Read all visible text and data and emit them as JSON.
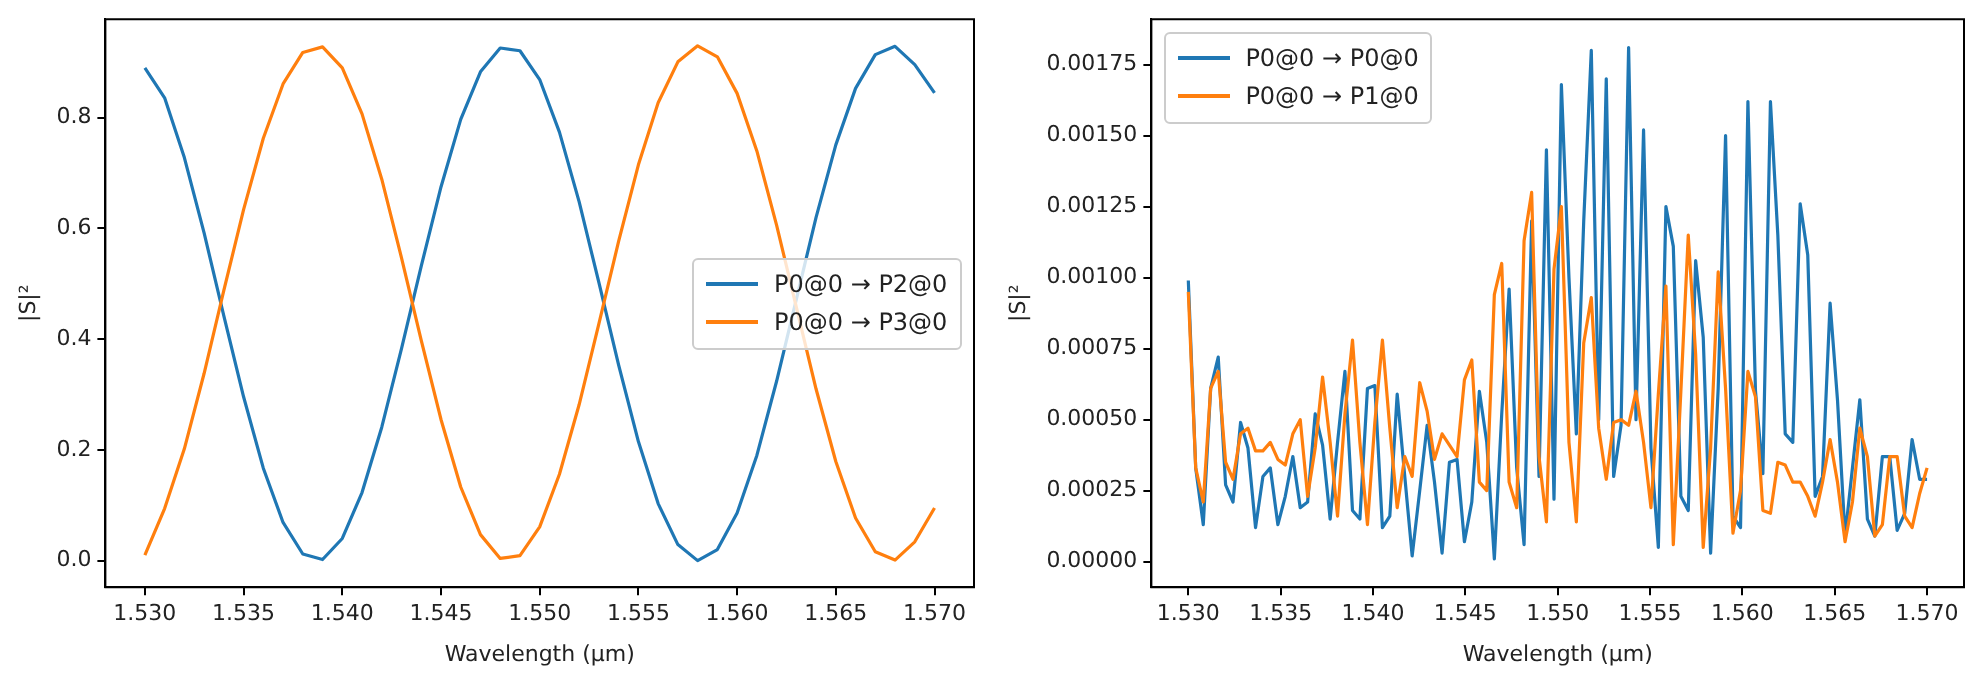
{
  "chart_data": [
    {
      "type": "line",
      "xlabel": "Wavelength (µm)",
      "ylabel": "|S|²",
      "legend": "center right",
      "grid": false,
      "marker": "none",
      "line_style": "solid",
      "xlim": [
        1.528,
        1.572
      ],
      "ylim": [
        -0.048,
        0.978
      ],
      "xticks": [
        {
          "value": 1.53,
          "label": "1.530"
        },
        {
          "value": 1.535,
          "label": "1.535"
        },
        {
          "value": 1.54,
          "label": "1.540"
        },
        {
          "value": 1.545,
          "label": "1.545"
        },
        {
          "value": 1.55,
          "label": "1.550"
        },
        {
          "value": 1.555,
          "label": "1.555"
        },
        {
          "value": 1.56,
          "label": "1.560"
        },
        {
          "value": 1.565,
          "label": "1.565"
        },
        {
          "value": 1.57,
          "label": "1.570"
        }
      ],
      "yticks": [
        {
          "value": 0,
          "label": "0.0"
        },
        {
          "value": 0.2,
          "label": "0.2"
        },
        {
          "value": 0.4,
          "label": "0.4"
        },
        {
          "value": 0.6,
          "label": "0.6"
        },
        {
          "value": 0.8,
          "label": "0.8"
        }
      ],
      "x": [
        1.53,
        1.531,
        1.532,
        1.533,
        1.534,
        1.535,
        1.536,
        1.537,
        1.538,
        1.539,
        1.54,
        1.541,
        1.542,
        1.543,
        1.544,
        1.545,
        1.546,
        1.547,
        1.548,
        1.549,
        1.55,
        1.551,
        1.552,
        1.553,
        1.554,
        1.555,
        1.556,
        1.557,
        1.558,
        1.559,
        1.56,
        1.561,
        1.562,
        1.564,
        1.565,
        1.566,
        1.567,
        1.568,
        1.569,
        1.57
      ],
      "series": [
        {
          "name": "P0@0 → P2@0",
          "color": "#1f77b4",
          "values": [
            0.89,
            0.836,
            0.728,
            0.592,
            0.442,
            0.296,
            0.167,
            0.069,
            0.012,
            0.002,
            0.04,
            0.123,
            0.241,
            0.383,
            0.532,
            0.675,
            0.797,
            0.883,
            0.926,
            0.921,
            0.869,
            0.774,
            0.648,
            0.502,
            0.353,
            0.215,
            0.103,
            0.029,
            0,
            0.02,
            0.086,
            0.19,
            0.324,
            0.62,
            0.751,
            0.853,
            0.914,
            0.929,
            0.896,
            0.845
          ]
        },
        {
          "name": "P0@0 → P3@0",
          "color": "#ff7f0e",
          "values": [
            0.01,
            0.094,
            0.202,
            0.338,
            0.488,
            0.634,
            0.763,
            0.861,
            0.918,
            0.928,
            0.89,
            0.807,
            0.689,
            0.547,
            0.398,
            0.255,
            0.133,
            0.047,
            0.004,
            0.009,
            0.061,
            0.156,
            0.282,
            0.428,
            0.577,
            0.715,
            0.827,
            0.901,
            0.93,
            0.91,
            0.844,
            0.74,
            0.606,
            0.31,
            0.179,
            0.077,
            0.016,
            0.001,
            0.034,
            0.095
          ]
        }
      ]
    },
    {
      "type": "line",
      "xlabel": "Wavelength (µm)",
      "ylabel": "|S|²",
      "legend": "top left",
      "grid": false,
      "marker": "none",
      "line_style": "solid",
      "xlim": [
        1.528,
        1.572
      ],
      "ylim": [
        -9e-05,
        0.00191
      ],
      "xticks": [
        {
          "value": 1.53,
          "label": "1.530"
        },
        {
          "value": 1.535,
          "label": "1.535"
        },
        {
          "value": 1.54,
          "label": "1.540"
        },
        {
          "value": 1.545,
          "label": "1.545"
        },
        {
          "value": 1.55,
          "label": "1.550"
        },
        {
          "value": 1.555,
          "label": "1.555"
        },
        {
          "value": 1.56,
          "label": "1.560"
        },
        {
          "value": 1.565,
          "label": "1.565"
        },
        {
          "value": 1.57,
          "label": "1.570"
        }
      ],
      "yticks": [
        {
          "value": 0,
          "label": "0.00000"
        },
        {
          "value": 0.00025,
          "label": "0.00025"
        },
        {
          "value": 0.0005,
          "label": "0.00050"
        },
        {
          "value": 0.00075,
          "label": "0.00075"
        },
        {
          "value": 0.001,
          "label": "0.00100"
        },
        {
          "value": 0.00125,
          "label": "0.00125"
        },
        {
          "value": 0.0015,
          "label": "0.00150"
        },
        {
          "value": 0.00175,
          "label": "0.00175"
        }
      ],
      "x": [
        1.53,
        1.5304,
        1.53081,
        1.53121,
        1.53162,
        1.53202,
        1.53242,
        1.53283,
        1.53323,
        1.53364,
        1.53404,
        1.53444,
        1.53485,
        1.53525,
        1.53566,
        1.53606,
        1.53646,
        1.53687,
        1.53727,
        1.53768,
        1.53808,
        1.53848,
        1.53889,
        1.53929,
        1.5397,
        1.5401,
        1.54051,
        1.54091,
        1.54131,
        1.54172,
        1.54212,
        1.54253,
        1.54293,
        1.54333,
        1.54374,
        1.54414,
        1.54455,
        1.54495,
        1.54535,
        1.54576,
        1.54616,
        1.54657,
        1.54697,
        1.54737,
        1.54778,
        1.54818,
        1.54859,
        1.54899,
        1.54939,
        1.5498,
        1.5502,
        1.55061,
        1.55101,
        1.55141,
        1.55182,
        1.55222,
        1.55263,
        1.55303,
        1.55343,
        1.55384,
        1.55424,
        1.55465,
        1.55505,
        1.55545,
        1.55586,
        1.55626,
        1.55667,
        1.55707,
        1.55747,
        1.55788,
        1.55828,
        1.55869,
        1.55909,
        1.55949,
        1.5599,
        1.5603,
        1.56071,
        1.56111,
        1.56152,
        1.56192,
        1.56232,
        1.56273,
        1.56313,
        1.56354,
        1.56394,
        1.56434,
        1.56475,
        1.56515,
        1.56556,
        1.56596,
        1.56636,
        1.56677,
        1.56717,
        1.56758,
        1.56798,
        1.56838,
        1.56879,
        1.56919,
        1.5696,
        1.57
      ],
      "series": [
        {
          "name": "P0@0 → P0@0",
          "color": "#1f77b4",
          "values": [
            0.00099,
            0.00033,
            0.00013,
            0.00061,
            0.00072,
            0.00027,
            0.00021,
            0.00049,
            0.0004,
            0.00012,
            0.0003,
            0.00033,
            0.00013,
            0.00023,
            0.00037,
            0.00019,
            0.00021,
            0.00052,
            0.00041,
            0.00015,
            0.00042,
            0.00067,
            0.00018,
            0.00015,
            0.00061,
            0.00062,
            0.00012,
            0.00016,
            0.00059,
            0.0003,
            2e-05,
            0.00025,
            0.00048,
            0.00028,
            3e-05,
            0.00035,
            0.00036,
            7e-05,
            0.00021,
            0.0006,
            0.00042,
            1e-05,
            0.00052,
            0.00096,
            0.00033,
            6e-05,
            0.0012,
            0.0003,
            0.00145,
            0.00022,
            0.00168,
            0.001,
            0.00045,
            0.0012,
            0.0018,
            0.0005,
            0.0017,
            0.0003,
            0.00048,
            0.00181,
            0.0005,
            0.00152,
            0.0004,
            5e-05,
            0.00125,
            0.00111,
            0.00023,
            0.00018,
            0.00106,
            0.00079,
            3e-05,
            0.00061,
            0.0015,
            0.00016,
            0.00012,
            0.00162,
            0.0006,
            0.00031,
            0.00162,
            0.00115,
            0.00045,
            0.00042,
            0.00126,
            0.00108,
            0.00023,
            0.0003,
            0.00091,
            0.00057,
            9e-05,
            0.00033,
            0.00057,
            0.00015,
            9e-05,
            0.00037,
            0.00037,
            0.00011,
            0.00017,
            0.00043,
            0.00029,
            0.00029
          ]
        },
        {
          "name": "P0@0 → P1@0",
          "color": "#ff7f0e",
          "values": [
            0.00095,
            0.00033,
            0.00021,
            0.00061,
            0.00067,
            0.00035,
            0.00029,
            0.00045,
            0.00047,
            0.00039,
            0.00039,
            0.00042,
            0.00036,
            0.00034,
            0.00045,
            0.0005,
            0.00023,
            0.0004,
            0.00065,
            0.00042,
            0.00016,
            0.00052,
            0.00078,
            0.00042,
            0.00013,
            0.00049,
            0.00078,
            0.00047,
            0.00019,
            0.00037,
            0.0003,
            0.00063,
            0.00053,
            0.00036,
            0.00045,
            0.00041,
            0.00037,
            0.00064,
            0.00071,
            0.00028,
            0.00025,
            0.00094,
            0.00105,
            0.00028,
            0.00019,
            0.00113,
            0.0013,
            0.00037,
            0.00014,
            0.00103,
            0.00125,
            0.00042,
            0.00014,
            0.00077,
            0.00093,
            0.00047,
            0.00029,
            0.00049,
            0.0005,
            0.00048,
            0.0006,
            0.00042,
            0.00019,
            0.00059,
            0.00097,
            6e-05,
            0.0006,
            0.00115,
            0.00073,
            5e-05,
            0.0004,
            0.00102,
            0.00061,
            0.0001,
            0.00025,
            0.00067,
            0.00058,
            0.00018,
            0.00017,
            0.00035,
            0.00034,
            0.00028,
            0.00028,
            0.00023,
            0.00016,
            0.00028,
            0.00043,
            0.00028,
            7e-05,
            0.00021,
            0.00047,
            0.00037,
            9e-05,
            0.00013,
            0.00037,
            0.00037,
            0.00016,
            0.00012,
            0.00024,
            0.00033
          ]
        }
      ]
    }
  ]
}
